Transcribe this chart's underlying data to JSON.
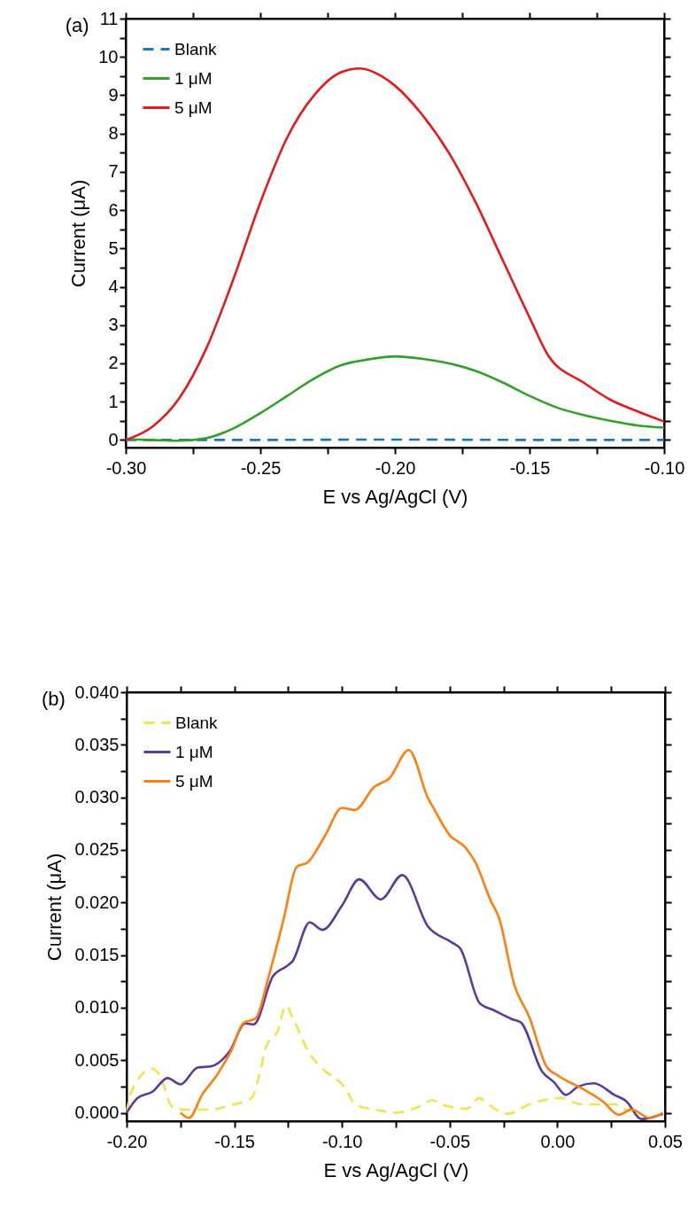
{
  "chart_data": [
    {
      "type": "line",
      "title": "(a)",
      "xlabel": "E vs Ag/AgCl (V)",
      "ylabel": "Current (μA)",
      "legend": "top left",
      "grid": false,
      "xlim": [
        -0.3,
        -0.1
      ],
      "ylim": [
        -0.2,
        11
      ],
      "xticks": [
        {
          "value": -0.3,
          "label": "-0.30"
        },
        {
          "value": -0.275,
          "label": null
        },
        {
          "value": -0.25,
          "label": "-0.25"
        },
        {
          "value": -0.225,
          "label": null
        },
        {
          "value": -0.2,
          "label": "-0.20"
        },
        {
          "value": -0.175,
          "label": null
        },
        {
          "value": -0.15,
          "label": "-0.15"
        },
        {
          "value": -0.125,
          "label": null
        },
        {
          "value": -0.1,
          "label": "-0.10"
        }
      ],
      "yticks": [
        0,
        {
          "value": 0.5,
          "label": null
        },
        1,
        {
          "value": 1.5,
          "label": null
        },
        2,
        {
          "value": 2.5,
          "label": null
        },
        3,
        {
          "value": 3.5,
          "label": null
        },
        4,
        {
          "value": 4.5,
          "label": null
        },
        5,
        {
          "value": 5.5,
          "label": null
        },
        6,
        {
          "value": 6.5,
          "label": null
        },
        7,
        {
          "value": 7.5,
          "label": null
        },
        8,
        {
          "value": 8.5,
          "label": null
        },
        9,
        {
          "value": 9.5,
          "label": null
        },
        10,
        {
          "value": 10.5,
          "label": null
        },
        11
      ],
      "series": [
        {
          "name": "Blank",
          "color": "#1f77b4",
          "line_style": "dashed",
          "x": [
            -0.3,
            -0.25,
            -0.2,
            -0.15,
            -0.1
          ],
          "values": [
            0,
            0,
            0.01,
            0,
            0
          ]
        },
        {
          "name": "1 μM",
          "color": "#33a02c",
          "line_style": "solid",
          "x": [
            -0.3,
            -0.29,
            -0.28,
            -0.27,
            -0.26,
            -0.25,
            -0.24,
            -0.23,
            -0.22,
            -0.21,
            -0.2,
            -0.19,
            -0.18,
            -0.17,
            -0.16,
            -0.15,
            -0.14,
            -0.13,
            -0.12,
            -0.11,
            -0.1
          ],
          "values": [
            0.02,
            0,
            -0.02,
            0.05,
            0.3,
            0.7,
            1.15,
            1.6,
            1.95,
            2.1,
            2.18,
            2.12,
            2,
            1.8,
            1.5,
            1.15,
            0.85,
            0.65,
            0.5,
            0.38,
            0.32
          ]
        },
        {
          "name": "5 μM",
          "color": "#e41a1c",
          "line_style": "solid",
          "x": [
            -0.3,
            -0.29,
            -0.28,
            -0.27,
            -0.26,
            -0.25,
            -0.24,
            -0.23,
            -0.22,
            -0.213,
            -0.205,
            -0.2,
            -0.19,
            -0.18,
            -0.17,
            -0.16,
            -0.15,
            -0.143,
            -0.13,
            -0.12,
            -0.11,
            -0.1
          ],
          "values": [
            0,
            0.35,
            1.1,
            2.4,
            4.2,
            6.2,
            7.9,
            9,
            9.6,
            9.7,
            9.5,
            9.25,
            8.5,
            7.5,
            6.2,
            4.7,
            3.2,
            2.2,
            1.5,
            1.05,
            0.75,
            0.48
          ]
        }
      ]
    },
    {
      "type": "line",
      "title": "(b)",
      "xlabel": "E vs Ag/AgCl (V)",
      "ylabel": "Current (μA)",
      "legend": "top left",
      "grid": false,
      "xlim": [
        -0.2,
        0.05
      ],
      "ylim": [
        -0.0008,
        0.04
      ],
      "xticks": [
        {
          "value": -0.2,
          "label": "-0.20"
        },
        {
          "value": -0.175,
          "label": null
        },
        {
          "value": -0.15,
          "label": "-0.15"
        },
        {
          "value": -0.125,
          "label": null
        },
        {
          "value": -0.1,
          "label": "-0.10"
        },
        {
          "value": -0.075,
          "label": null
        },
        {
          "value": -0.05,
          "label": "-0.05"
        },
        {
          "value": -0.025,
          "label": null
        },
        {
          "value": 0,
          "label": "0.00"
        },
        {
          "value": 0.025,
          "label": null
        },
        {
          "value": 0.05,
          "label": "0.05"
        }
      ],
      "yticks": [
        {
          "value": 0,
          "label": "0.000"
        },
        {
          "value": 0.0025,
          "label": null
        },
        {
          "value": 0.005,
          "label": "0.005"
        },
        {
          "value": 0.0075,
          "label": null
        },
        {
          "value": 0.01,
          "label": "0.010"
        },
        {
          "value": 0.0125,
          "label": null
        },
        {
          "value": 0.015,
          "label": "0.015"
        },
        {
          "value": 0.0175,
          "label": null
        },
        {
          "value": 0.02,
          "label": "0.020"
        },
        {
          "value": 0.0225,
          "label": null
        },
        {
          "value": 0.025,
          "label": "0.025"
        },
        {
          "value": 0.0275,
          "label": null
        },
        {
          "value": 0.03,
          "label": "0.030"
        },
        {
          "value": 0.0325,
          "label": null
        },
        {
          "value": 0.035,
          "label": "0.035"
        },
        {
          "value": 0.0375,
          "label": null
        },
        {
          "value": 0.04,
          "label": "0.040"
        }
      ],
      "series": [
        {
          "name": "Blank",
          "color": "#f2e34c",
          "line_style": "dashed",
          "x": [
            -0.2,
            -0.198,
            -0.188,
            -0.184,
            -0.179,
            -0.173,
            -0.161,
            -0.152,
            -0.142,
            -0.139,
            -0.135,
            -0.13,
            -0.126,
            -0.123,
            -0.115,
            -0.109,
            -0.098,
            -0.094,
            -0.082,
            -0.075,
            -0.063,
            -0.058,
            -0.054,
            -0.042,
            -0.036,
            -0.034,
            -0.023,
            -0.013,
            0.0015,
            0.0115,
            0.0265,
            0.032,
            0.039
          ],
          "values": [
            0,
            0.0019,
            0.0042,
            0.0033,
            0.0006,
            0.0003,
            0.0003,
            0.0007,
            0.0014,
            0.0031,
            0.0064,
            0.0077,
            0.0102,
            0.0091,
            0.0056,
            0.0042,
            0.0022,
            0.0008,
            0.0002,
            0,
            0.0007,
            0.0012,
            0.0008,
            0.0004,
            0.0014,
            0.0011,
            -0.0001,
            0.0008,
            0.0014,
            0.0008,
            0.0008,
            0.0003,
            0.0008
          ]
        },
        {
          "name": "1 μM",
          "color": "#5b3a9b",
          "line_style": "solid",
          "x": [
            -0.2,
            -0.195,
            -0.188,
            -0.181,
            -0.175,
            -0.167,
            -0.161,
            -0.152,
            -0.145,
            -0.141,
            -0.132,
            -0.126,
            -0.123,
            -0.115,
            -0.109,
            -0.1,
            -0.092,
            -0.082,
            -0.072,
            -0.06,
            -0.049,
            -0.045,
            -0.036,
            -0.03,
            -0.021,
            -0.017,
            -0.007,
            -0.0015,
            0.004,
            0.0097,
            0.017,
            0.0265,
            0.032,
            0.039,
            0.049
          ],
          "values": [
            0,
            0.0014,
            0.002,
            0.0033,
            0.0027,
            0.0043,
            0.0044,
            0.0059,
            0.0085,
            0.0084,
            0.013,
            0.0139,
            0.0144,
            0.0181,
            0.0174,
            0.0197,
            0.0222,
            0.0203,
            0.0226,
            0.0177,
            0.0162,
            0.0156,
            0.0104,
            0.0098,
            0.0089,
            0.0086,
            0.0039,
            0.0029,
            0.0017,
            0.0025,
            0.0028,
            0.0017,
            0.0011,
            -0.0006,
            -0.0001
          ]
        },
        {
          "name": "5 μM",
          "color": "#ff7f0e",
          "line_style": "solid",
          "x": [
            -0.175,
            -0.171,
            -0.165,
            -0.158,
            -0.151,
            -0.146,
            -0.14,
            -0.134,
            -0.127,
            -0.121,
            -0.116,
            -0.108,
            -0.1,
            -0.094,
            -0.085,
            -0.078,
            -0.069,
            -0.06,
            -0.057,
            -0.05,
            -0.043,
            -0.038,
            -0.031,
            -0.027,
            -0.02,
            -0.013,
            -0.005,
            0.0006,
            0.0115,
            0.021,
            0.0285,
            0.0345,
            0.043,
            0.049
          ],
          "values": [
            0,
            -0.0005,
            0.0017,
            0.0036,
            0.0061,
            0.0085,
            0.009,
            0.013,
            0.0185,
            0.0234,
            0.0238,
            0.0263,
            0.029,
            0.0288,
            0.031,
            0.0318,
            0.0345,
            0.0299,
            0.0288,
            0.0264,
            0.0253,
            0.0238,
            0.0202,
            0.0185,
            0.0122,
            0.0091,
            0.0044,
            0.0035,
            0.0023,
            0.0011,
            -0.0002,
            0.0003,
            -0.0005,
            0
          ]
        }
      ]
    }
  ]
}
